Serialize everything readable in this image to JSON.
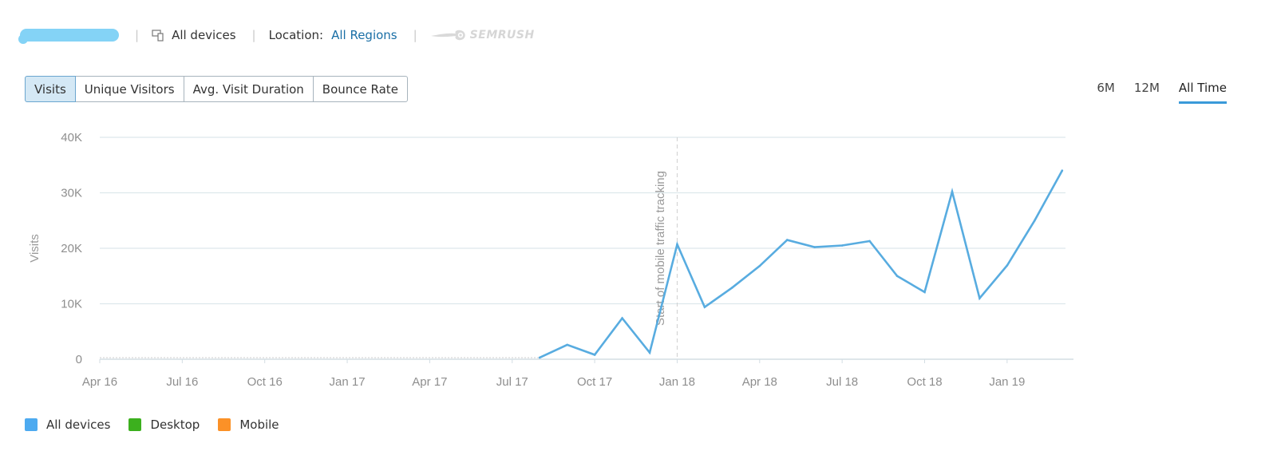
{
  "topbar": {
    "devices_label": "All devices",
    "location_label": "Location:",
    "location_value": "All Regions",
    "brand": "SEMRUSH"
  },
  "tabs": [
    {
      "label": "Visits",
      "active": true
    },
    {
      "label": "Unique Visitors",
      "active": false
    },
    {
      "label": "Avg. Visit Duration",
      "active": false
    },
    {
      "label": "Bounce Rate",
      "active": false
    }
  ],
  "periods": [
    {
      "label": "6M",
      "active": false
    },
    {
      "label": "12M",
      "active": false
    },
    {
      "label": "All Time",
      "active": true
    }
  ],
  "legend": [
    {
      "label": "All devices",
      "color": "#4daaf0"
    },
    {
      "label": "Desktop",
      "color": "#3cb01e"
    },
    {
      "label": "Mobile",
      "color": "#fb9127"
    }
  ],
  "chart_data": {
    "type": "line",
    "ylabel": "Visits",
    "ylim": [
      0,
      40000
    ],
    "y_ticks": [
      "0",
      "10K",
      "20K",
      "30K",
      "40K"
    ],
    "x_ticks": [
      "Apr 16",
      "Jul 16",
      "Oct 16",
      "Jan 17",
      "Apr 17",
      "Jul 17",
      "Oct 17",
      "Jan 18",
      "Apr 18",
      "Jul 18",
      "Oct 18",
      "Jan 19"
    ],
    "grid": true,
    "annotation": {
      "label": "Start of mobile traffic tracking",
      "at": "Jan 18"
    },
    "series": [
      {
        "name": "All devices",
        "color": "#58ace0",
        "points": [
          {
            "x": "Aug 17",
            "y": 300
          },
          {
            "x": "Sep 17",
            "y": 2600
          },
          {
            "x": "Oct 17",
            "y": 800
          },
          {
            "x": "Nov 17",
            "y": 7400
          },
          {
            "x": "Dec 17",
            "y": 1200
          },
          {
            "x": "Jan 18",
            "y": 20700
          },
          {
            "x": "Feb 18",
            "y": 9400
          },
          {
            "x": "Mar 18",
            "y": 12900
          },
          {
            "x": "Apr 18",
            "y": 16800
          },
          {
            "x": "May 18",
            "y": 21500
          },
          {
            "x": "Jun 18",
            "y": 20200
          },
          {
            "x": "Jul 18",
            "y": 20500
          },
          {
            "x": "Aug 18",
            "y": 21300
          },
          {
            "x": "Sep 18",
            "y": 15000
          },
          {
            "x": "Oct 18",
            "y": 12100
          },
          {
            "x": "Nov 18",
            "y": 30200
          },
          {
            "x": "Dec 18",
            "y": 11000
          },
          {
            "x": "Jan 19",
            "y": 16900
          },
          {
            "x": "Feb 19",
            "y": 25000
          },
          {
            "x": "Mar 19",
            "y": 34000
          }
        ]
      }
    ]
  }
}
